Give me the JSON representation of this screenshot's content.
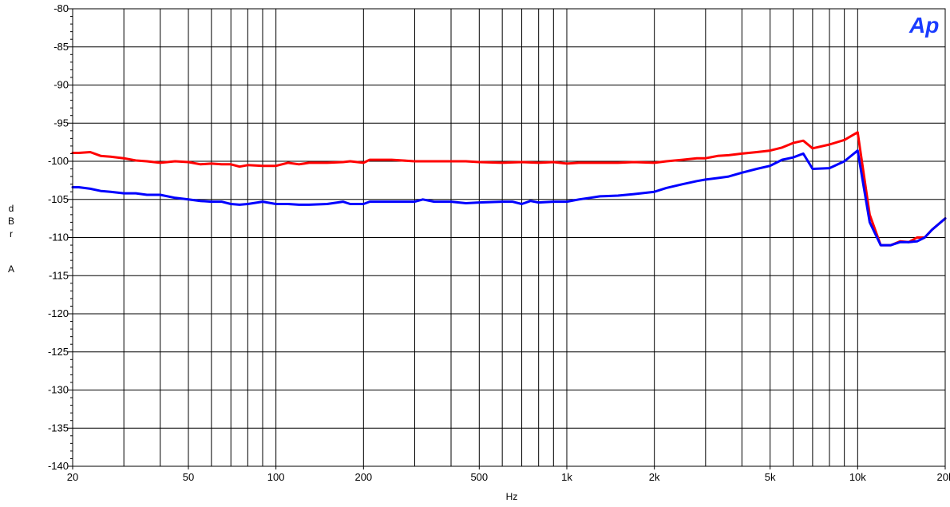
{
  "chart_data": {
    "type": "line",
    "logo": "Ap",
    "xlabel": "Hz",
    "ylabel": [
      "d",
      "B",
      "r",
      "",
      "A"
    ],
    "xscale": "log",
    "xlim": [
      20,
      20000
    ],
    "ylim": [
      -140,
      -80
    ],
    "grid": true,
    "x_ticks": [
      {
        "value": 20,
        "label": "20"
      },
      {
        "value": 50,
        "label": "50"
      },
      {
        "value": 100,
        "label": "100"
      },
      {
        "value": 200,
        "label": "200"
      },
      {
        "value": 500,
        "label": "500"
      },
      {
        "value": 1000,
        "label": "1k"
      },
      {
        "value": 2000,
        "label": "2k"
      },
      {
        "value": 5000,
        "label": "5k"
      },
      {
        "value": 10000,
        "label": "10k"
      },
      {
        "value": 20000,
        "label": "20k"
      }
    ],
    "y_ticks": [
      -80,
      -85,
      -90,
      -95,
      -100,
      -105,
      -110,
      -115,
      -120,
      -125,
      -130,
      -135,
      -140
    ],
    "series": [
      {
        "color": "#ff0000",
        "points": [
          [
            20,
            -98.9
          ],
          [
            21,
            -98.9
          ],
          [
            23,
            -98.8
          ],
          [
            25,
            -99.3
          ],
          [
            27,
            -99.4
          ],
          [
            30,
            -99.6
          ],
          [
            33,
            -99.9
          ],
          [
            36,
            -100.0
          ],
          [
            40,
            -100.2
          ],
          [
            45,
            -100.0
          ],
          [
            50,
            -100.1
          ],
          [
            55,
            -100.4
          ],
          [
            60,
            -100.3
          ],
          [
            65,
            -100.4
          ],
          [
            70,
            -100.4
          ],
          [
            75,
            -100.7
          ],
          [
            80,
            -100.5
          ],
          [
            90,
            -100.6
          ],
          [
            100,
            -100.6
          ],
          [
            110,
            -100.2
          ],
          [
            120,
            -100.4
          ],
          [
            130,
            -100.2
          ],
          [
            150,
            -100.2
          ],
          [
            170,
            -100.1
          ],
          [
            180,
            -100.0
          ],
          [
            200,
            -100.2
          ],
          [
            210,
            -99.8
          ],
          [
            250,
            -99.8
          ],
          [
            300,
            -100.0
          ],
          [
            350,
            -100.0
          ],
          [
            400,
            -100.0
          ],
          [
            450,
            -100.0
          ],
          [
            500,
            -100.1
          ],
          [
            600,
            -100.2
          ],
          [
            700,
            -100.1
          ],
          [
            800,
            -100.2
          ],
          [
            900,
            -100.1
          ],
          [
            1000,
            -100.3
          ],
          [
            1100,
            -100.2
          ],
          [
            1200,
            -100.2
          ],
          [
            1500,
            -100.2
          ],
          [
            1700,
            -100.1
          ],
          [
            2000,
            -100.2
          ],
          [
            2200,
            -100.0
          ],
          [
            2500,
            -99.8
          ],
          [
            2800,
            -99.6
          ],
          [
            3000,
            -99.6
          ],
          [
            3300,
            -99.3
          ],
          [
            3600,
            -99.2
          ],
          [
            4000,
            -99.0
          ],
          [
            4500,
            -98.8
          ],
          [
            5000,
            -98.6
          ],
          [
            5500,
            -98.2
          ],
          [
            6000,
            -97.6
          ],
          [
            6500,
            -97.3
          ],
          [
            7000,
            -98.3
          ],
          [
            8000,
            -97.8
          ],
          [
            9000,
            -97.2
          ],
          [
            10000,
            -96.2
          ],
          [
            11000,
            -107.0
          ],
          [
            12000,
            -111.0
          ],
          [
            13000,
            -111.0
          ],
          [
            14000,
            -110.5
          ],
          [
            15000,
            -110.6
          ],
          [
            16000,
            -110.0
          ],
          [
            17000,
            -110.0
          ],
          [
            18000,
            -109.0
          ],
          [
            20000,
            -107.5
          ]
        ]
      },
      {
        "color": "#0000ff",
        "points": [
          [
            20,
            -103.4
          ],
          [
            21,
            -103.4
          ],
          [
            23,
            -103.6
          ],
          [
            25,
            -103.9
          ],
          [
            27,
            -104.0
          ],
          [
            30,
            -104.2
          ],
          [
            33,
            -104.2
          ],
          [
            36,
            -104.4
          ],
          [
            40,
            -104.4
          ],
          [
            45,
            -104.8
          ],
          [
            50,
            -105.0
          ],
          [
            55,
            -105.2
          ],
          [
            60,
            -105.3
          ],
          [
            65,
            -105.3
          ],
          [
            70,
            -105.6
          ],
          [
            75,
            -105.7
          ],
          [
            80,
            -105.6
          ],
          [
            90,
            -105.3
          ],
          [
            100,
            -105.6
          ],
          [
            110,
            -105.6
          ],
          [
            120,
            -105.7
          ],
          [
            130,
            -105.7
          ],
          [
            150,
            -105.6
          ],
          [
            170,
            -105.3
          ],
          [
            180,
            -105.6
          ],
          [
            200,
            -105.6
          ],
          [
            210,
            -105.3
          ],
          [
            250,
            -105.3
          ],
          [
            300,
            -105.3
          ],
          [
            320,
            -105.0
          ],
          [
            350,
            -105.3
          ],
          [
            400,
            -105.3
          ],
          [
            450,
            -105.5
          ],
          [
            500,
            -105.4
          ],
          [
            600,
            -105.3
          ],
          [
            650,
            -105.3
          ],
          [
            700,
            -105.6
          ],
          [
            750,
            -105.2
          ],
          [
            800,
            -105.4
          ],
          [
            900,
            -105.3
          ],
          [
            1000,
            -105.3
          ],
          [
            1100,
            -105.0
          ],
          [
            1200,
            -104.8
          ],
          [
            1300,
            -104.6
          ],
          [
            1500,
            -104.5
          ],
          [
            1700,
            -104.3
          ],
          [
            2000,
            -104.0
          ],
          [
            2200,
            -103.5
          ],
          [
            2500,
            -103.0
          ],
          [
            2800,
            -102.6
          ],
          [
            3000,
            -102.4
          ],
          [
            3300,
            -102.2
          ],
          [
            3600,
            -102.0
          ],
          [
            4000,
            -101.5
          ],
          [
            4500,
            -101.0
          ],
          [
            5000,
            -100.6
          ],
          [
            5500,
            -99.8
          ],
          [
            6000,
            -99.5
          ],
          [
            6500,
            -99.0
          ],
          [
            7000,
            -101.0
          ],
          [
            8000,
            -100.9
          ],
          [
            9000,
            -100.0
          ],
          [
            10000,
            -98.6
          ],
          [
            11000,
            -108.0
          ],
          [
            12000,
            -111.0
          ],
          [
            13000,
            -111.0
          ],
          [
            14000,
            -110.6
          ],
          [
            15000,
            -110.6
          ],
          [
            16000,
            -110.5
          ],
          [
            17000,
            -110.0
          ],
          [
            18000,
            -109.0
          ],
          [
            20000,
            -107.5
          ]
        ]
      }
    ]
  }
}
